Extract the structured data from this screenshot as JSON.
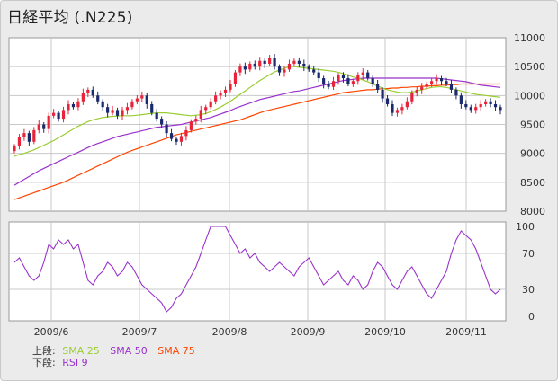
{
  "title": "日経平均 (.N225)",
  "legend": {
    "upper_label": "上段:",
    "lower_label": "下段:",
    "upper": [
      {
        "label": "SMA 25",
        "color": "#9acd32"
      },
      {
        "label": "SMA 50",
        "color": "#9932cc"
      },
      {
        "label": "SMA 75",
        "color": "#ff4500"
      }
    ],
    "lower": [
      {
        "label": "RSI 9",
        "color": "#9932cc"
      }
    ]
  },
  "colors": {
    "up_candle": "#e8233a",
    "down_candle": "#1a2a6c",
    "grid": "#c8c8c8",
    "panel_border": "#999999"
  },
  "chart_data": [
    {
      "type": "candlestick",
      "ylim": [
        8000,
        11000
      ],
      "y_ticks": [
        "11000",
        "10500",
        "10000",
        "9500",
        "9000",
        "8500",
        "8000"
      ],
      "x_ticks": [
        "2009/6",
        "2009/7",
        "2009/8",
        "2009/9",
        "2009/10",
        "2009/11"
      ],
      "grid": true,
      "close": [
        9120,
        9280,
        9350,
        9200,
        9400,
        9500,
        9420,
        9650,
        9700,
        9600,
        9750,
        9850,
        9800,
        9900,
        10050,
        10100,
        10000,
        9900,
        9800,
        9700,
        9750,
        9650,
        9750,
        9800,
        9900,
        9950,
        10000,
        9850,
        9700,
        9600,
        9500,
        9350,
        9250,
        9200,
        9300,
        9400,
        9550,
        9600,
        9750,
        9800,
        9900,
        10000,
        10050,
        10100,
        10200,
        10400,
        10500,
        10450,
        10550,
        10500,
        10600,
        10550,
        10650,
        10500,
        10400,
        10450,
        10550,
        10600,
        10550,
        10500,
        10450,
        10400,
        10300,
        10200,
        10150,
        10250,
        10350,
        10300,
        10200,
        10250,
        10350,
        10400,
        10300,
        10200,
        10100,
        9950,
        9850,
        9700,
        9750,
        9800,
        9900,
        10050,
        10100,
        10150,
        10200,
        10250,
        10300,
        10250,
        10200,
        10100,
        10000,
        9850,
        9800,
        9750,
        9800,
        9850,
        9900,
        9850,
        9800,
        9750
      ],
      "series": [
        {
          "name": "SMA 25",
          "values": [
            8950,
            8980,
            9000,
            9030,
            9060,
            9100,
            9140,
            9180,
            9220,
            9270,
            9320,
            9370,
            9420,
            9470,
            9510,
            9550,
            9580,
            9600,
            9620,
            9630,
            9640,
            9645,
            9650,
            9650,
            9650,
            9660,
            9670,
            9680,
            9690,
            9700,
            9700,
            9700,
            9690,
            9680,
            9670,
            9660,
            9650,
            9660,
            9670,
            9690,
            9720,
            9760,
            9800,
            9850,
            9900,
            9960,
            10020,
            10080,
            10140,
            10200,
            10260,
            10310,
            10360,
            10410,
            10440,
            10470,
            10500,
            10500,
            10490,
            10480,
            10470,
            10460,
            10450,
            10440,
            10430,
            10420,
            10400,
            10380,
            10350,
            10320,
            10300,
            10270,
            10240,
            10200,
            10160,
            10130,
            10100,
            10080,
            10060,
            10050,
            10050,
            10060,
            10080,
            10100,
            10120,
            10140,
            10150,
            10150,
            10140,
            10120,
            10100,
            10080,
            10060,
            10040,
            10020,
            10010,
            10000,
            9990,
            9980,
            9970
          ]
        },
        {
          "name": "SMA 50",
          "values": [
            8450,
            8500,
            8550,
            8600,
            8650,
            8700,
            8740,
            8780,
            8820,
            8860,
            8900,
            8940,
            8980,
            9020,
            9060,
            9100,
            9140,
            9170,
            9200,
            9230,
            9260,
            9290,
            9310,
            9330,
            9350,
            9370,
            9390,
            9410,
            9430,
            9450,
            9460,
            9470,
            9480,
            9490,
            9500,
            9520,
            9540,
            9560,
            9580,
            9600,
            9620,
            9650,
            9680,
            9710,
            9740,
            9780,
            9810,
            9840,
            9870,
            9900,
            9930,
            9950,
            9970,
            9990,
            10010,
            10030,
            10050,
            10070,
            10080,
            10100,
            10120,
            10140,
            10160,
            10180,
            10200,
            10220,
            10240,
            10260,
            10270,
            10280,
            10290,
            10300,
            10300,
            10300,
            10300,
            10300,
            10300,
            10300,
            10300,
            10300,
            10300,
            10300,
            10300,
            10300,
            10300,
            10300,
            10300,
            10290,
            10280,
            10270,
            10260,
            10250,
            10240,
            10220,
            10200,
            10180,
            10170,
            10160,
            10150,
            10140
          ]
        },
        {
          "name": "SMA 75",
          "values": [
            8200,
            8230,
            8260,
            8290,
            8320,
            8350,
            8380,
            8410,
            8440,
            8470,
            8500,
            8540,
            8580,
            8620,
            8660,
            8700,
            8740,
            8780,
            8820,
            8860,
            8900,
            8940,
            8980,
            9020,
            9050,
            9080,
            9110,
            9140,
            9170,
            9200,
            9230,
            9260,
            9290,
            9320,
            9340,
            9360,
            9380,
            9400,
            9420,
            9440,
            9460,
            9480,
            9500,
            9520,
            9540,
            9560,
            9580,
            9610,
            9640,
            9670,
            9700,
            9730,
            9750,
            9770,
            9790,
            9810,
            9830,
            9850,
            9870,
            9890,
            9910,
            9930,
            9950,
            9970,
            9990,
            10010,
            10030,
            10050,
            10060,
            10070,
            10080,
            10090,
            10100,
            10100,
            10110,
            10120,
            10120,
            10130,
            10130,
            10140,
            10140,
            10150,
            10150,
            10160,
            10160,
            10170,
            10170,
            10180,
            10180,
            10190,
            10190,
            10200,
            10200,
            10200,
            10200,
            10200,
            10200,
            10200,
            10200,
            10200
          ]
        }
      ]
    },
    {
      "type": "line",
      "ylim": [
        0,
        100
      ],
      "y_ticks": [
        "100",
        "70",
        "30",
        "0"
      ],
      "x_ticks": [
        "2009/6",
        "2009/7",
        "2009/8",
        "2009/9",
        "2009/10",
        "2009/11"
      ],
      "grid": true,
      "series": [
        {
          "name": "RSI 9",
          "values": [
            60,
            65,
            55,
            45,
            40,
            45,
            60,
            80,
            75,
            85,
            80,
            85,
            75,
            80,
            60,
            40,
            35,
            45,
            50,
            60,
            55,
            45,
            50,
            60,
            55,
            45,
            35,
            30,
            25,
            20,
            15,
            5,
            10,
            20,
            25,
            35,
            45,
            55,
            70,
            85,
            100,
            100,
            100,
            100,
            90,
            80,
            70,
            75,
            65,
            70,
            60,
            55,
            50,
            55,
            60,
            55,
            50,
            45,
            55,
            60,
            65,
            55,
            45,
            35,
            40,
            45,
            50,
            40,
            35,
            45,
            40,
            30,
            35,
            50,
            60,
            55,
            45,
            35,
            30,
            40,
            50,
            55,
            45,
            35,
            25,
            20,
            30,
            40,
            50,
            70,
            85,
            95,
            90,
            85,
            75,
            60,
            45,
            30,
            25,
            30
          ]
        }
      ]
    }
  ]
}
